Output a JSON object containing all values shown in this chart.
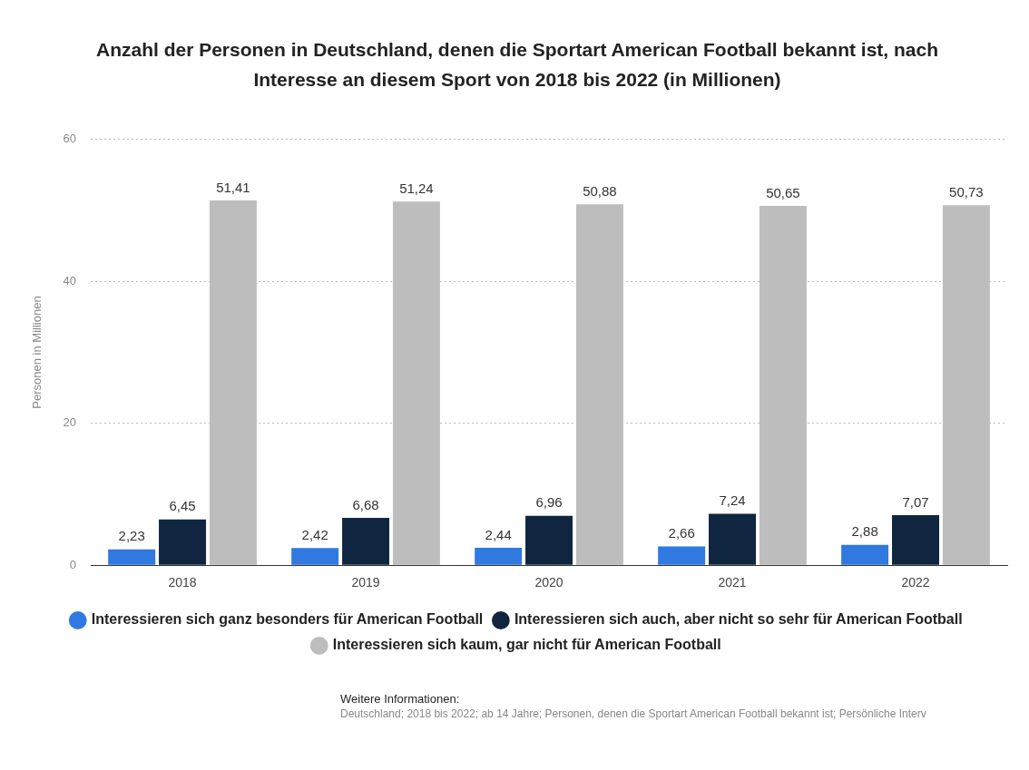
{
  "chart_data": {
    "type": "bar",
    "title": "Anzahl der Personen in Deutschland, denen die Sportart American Football bekannt ist, nach Interesse an diesem Sport von 2018 bis 2022 (in Millionen)",
    "ylabel": "Personen in Millionen",
    "categories": [
      "2018",
      "2019",
      "2020",
      "2021",
      "2022"
    ],
    "series": [
      {
        "name": "Interessieren sich ganz besonders für American Football",
        "color": "#2f79e1",
        "values": [
          2.23,
          2.42,
          2.44,
          2.66,
          2.88
        ],
        "value_labels": [
          "2,23",
          "2,42",
          "2,44",
          "2,66",
          "2,88"
        ]
      },
      {
        "name": "Interessieren sich auch, aber nicht so sehr für American Football",
        "color": "#10253f",
        "values": [
          6.45,
          6.68,
          6.96,
          7.24,
          7.07
        ],
        "value_labels": [
          "6,45",
          "6,68",
          "6,96",
          "7,24",
          "7,07"
        ]
      },
      {
        "name": "Interessieren sich kaum, gar nicht für American Football",
        "color": "#bdbdbd",
        "values": [
          51.41,
          51.24,
          50.88,
          50.65,
          50.73
        ],
        "value_labels": [
          "51,41",
          "51,24",
          "50,88",
          "50,65",
          "50,73"
        ]
      }
    ],
    "ylim": [
      0,
      60
    ],
    "yticks": [
      0,
      20,
      40,
      60
    ],
    "grid": "y",
    "legend": "bottom",
    "annotations": [
      "Weitere Informationen:",
      "Deutschland; 2018 bis 2022; ab 14 Jahre; Personen, denen die Sportart American Football bekannt ist; Persönliche Interv"
    ]
  }
}
